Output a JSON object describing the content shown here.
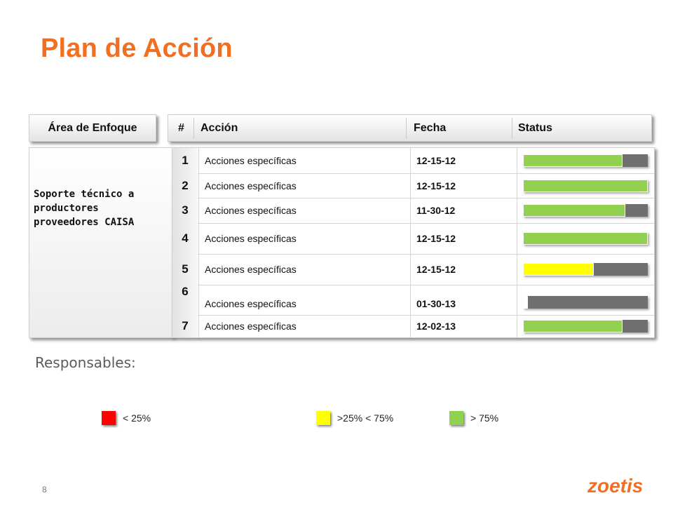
{
  "slide": {
    "title": "Plan de Acción",
    "page_number": "8",
    "brand": "zoetis",
    "accent_color": "#f26f21"
  },
  "area": {
    "header": "Área de Enfoque",
    "text": "Soporte técnico a productores proveedores CAISA"
  },
  "table": {
    "headers": {
      "num": "#",
      "accion": "Acción",
      "fecha": "Fecha",
      "status": "Status"
    },
    "rows": [
      {
        "num": "1",
        "accion": "Acciones específicas",
        "fecha": "12-15-12",
        "progress": 0.8,
        "color": "#92d050"
      },
      {
        "num": "2",
        "accion": "Acciones específicas",
        "fecha": "12-15-12",
        "progress": 1.0,
        "color": "#92d050"
      },
      {
        "num": "3",
        "accion": "Acciones específicas",
        "fecha": "11-30-12",
        "progress": 0.82,
        "color": "#92d050"
      },
      {
        "num": "4",
        "accion": "Acciones específicas",
        "fecha": "12-15-12",
        "progress": 1.0,
        "color": "#92d050"
      },
      {
        "num": "5",
        "accion": "Acciones específicas",
        "fecha": "12-15-12",
        "progress": 0.57,
        "color": "#ffff00"
      },
      {
        "num": "6",
        "accion": "Acciones específicas",
        "fecha": "01-30-13",
        "progress": 0.04,
        "color": "#ffffff"
      },
      {
        "num": "7",
        "accion": "Acciones específicas",
        "fecha": "12-02-13",
        "progress": 0.8,
        "color": "#92d050"
      }
    ]
  },
  "responsables": {
    "label": "Responsables:"
  },
  "legend": [
    {
      "label": "< 25%",
      "color": "#ff0000"
    },
    {
      "label": ">25% < 75%",
      "color": "#ffff00"
    },
    {
      "label": "> 75%",
      "color": "#92d050"
    }
  ]
}
